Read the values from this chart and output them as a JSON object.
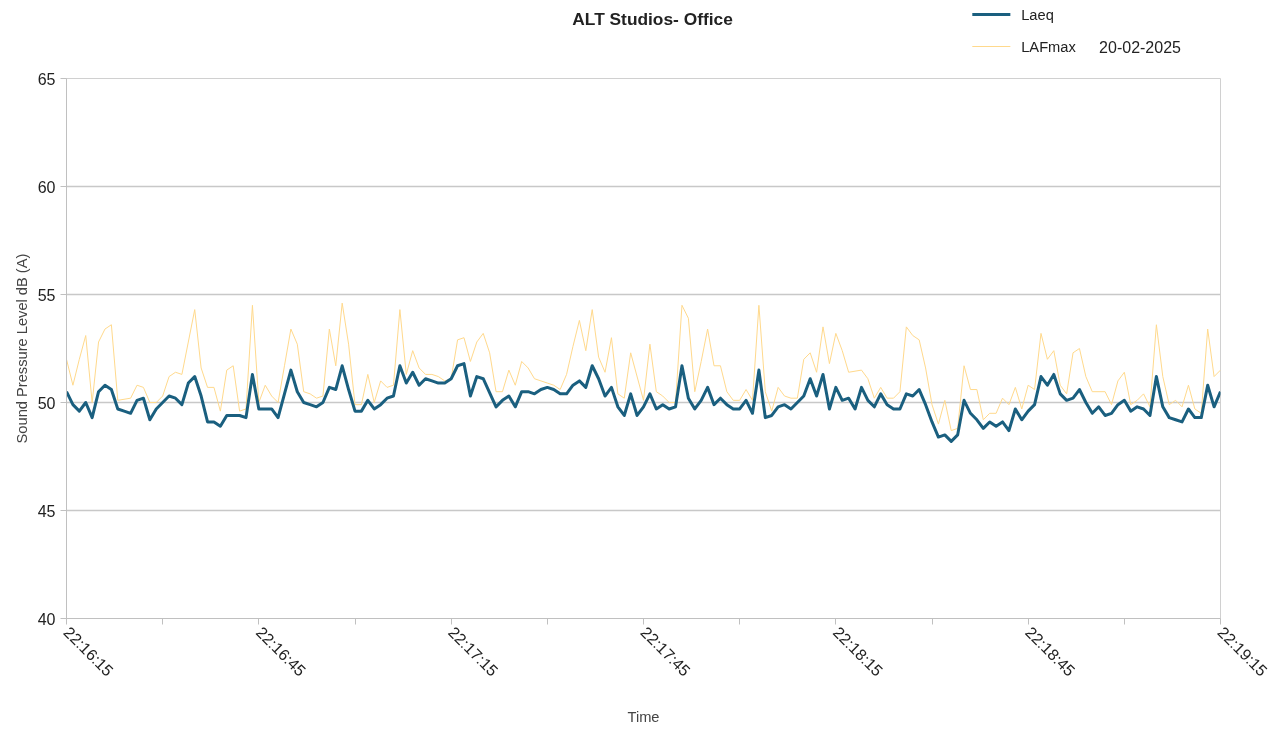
{
  "chart_data": {
    "type": "line",
    "title": "ALT Studios- Office",
    "xlabel": "Time",
    "ylabel": "Sound Pressure Level dB (A)",
    "annotations": [
      "20-02-2025"
    ],
    "xlim": [
      "2025-02-20T22:16:15",
      "2025-02-20T22:19:15"
    ],
    "xticks": [
      {
        "value": "2025-02-20T22:16:15",
        "label": "22:16:15"
      },
      {
        "value": "2025-02-20T22:16:30",
        "label": null
      },
      {
        "value": "2025-02-20T22:16:45",
        "label": "22:16:45"
      },
      {
        "value": "2025-02-20T22:17:00",
        "label": null
      },
      {
        "value": "2025-02-20T22:17:15",
        "label": "22:17:15"
      },
      {
        "value": "2025-02-20T22:17:30",
        "label": null
      },
      {
        "value": "2025-02-20T22:17:45",
        "label": "22:17:45"
      },
      {
        "value": "2025-02-20T22:18:00",
        "label": null
      },
      {
        "value": "2025-02-20T22:18:15",
        "label": "22:18:15"
      },
      {
        "value": "2025-02-20T22:18:30",
        "label": null
      },
      {
        "value": "2025-02-20T22:18:45",
        "label": "22:18:45"
      },
      {
        "value": "2025-02-20T22:19:00",
        "label": null
      },
      {
        "value": "2025-02-20T22:19:15",
        "label": "22:19:15"
      }
    ],
    "ylim": [
      40,
      65
    ],
    "yticks": [
      40,
      45,
      50,
      55,
      60,
      65
    ],
    "grid": "y",
    "legend": "top right",
    "marker": "none",
    "series": [
      {
        "name": "LAFmax",
        "color": "#ffd98c",
        "x": [
          "2025-02-20T22:16:15",
          "2025-02-20T22:16:16",
          "2025-02-20T22:16:17",
          "2025-02-20T22:16:18",
          "2025-02-20T22:16:19",
          "2025-02-20T22:16:20",
          "2025-02-20T22:16:21",
          "2025-02-20T22:16:22",
          "2025-02-20T22:16:23",
          "2025-02-20T22:16:25",
          "2025-02-20T22:16:26",
          "2025-02-20T22:16:27",
          "2025-02-20T22:16:28",
          "2025-02-20T22:16:29",
          "2025-02-20T22:16:30",
          "2025-02-20T22:16:31",
          "2025-02-20T22:16:32",
          "2025-02-20T22:16:33",
          "2025-02-20T22:16:34",
          "2025-02-20T22:16:35",
          "2025-02-20T22:16:36",
          "2025-02-20T22:16:37",
          "2025-02-20T22:16:38",
          "2025-02-20T22:16:39",
          "2025-02-20T22:16:40",
          "2025-02-20T22:16:41",
          "2025-02-20T22:16:42",
          "2025-02-20T22:16:43",
          "2025-02-20T22:16:44",
          "2025-02-20T22:16:45",
          "2025-02-20T22:16:46",
          "2025-02-20T22:16:47",
          "2025-02-20T22:16:48",
          "2025-02-20T22:16:49",
          "2025-02-20T22:16:50",
          "2025-02-20T22:16:51",
          "2025-02-20T22:16:52",
          "2025-02-20T22:16:53",
          "2025-02-20T22:16:54",
          "2025-02-20T22:16:55",
          "2025-02-20T22:16:56",
          "2025-02-20T22:16:57",
          "2025-02-20T22:16:58",
          "2025-02-20T22:16:59",
          "2025-02-20T22:17:00",
          "2025-02-20T22:17:01",
          "2025-02-20T22:17:02",
          "2025-02-20T22:17:03",
          "2025-02-20T22:17:04",
          "2025-02-20T22:17:05",
          "2025-02-20T22:17:06",
          "2025-02-20T22:17:07",
          "2025-02-20T22:17:08",
          "2025-02-20T22:17:09",
          "2025-02-20T22:17:10",
          "2025-02-20T22:17:11",
          "2025-02-20T22:17:12",
          "2025-02-20T22:17:13",
          "2025-02-20T22:17:14",
          "2025-02-20T22:17:15",
          "2025-02-20T22:17:16",
          "2025-02-20T22:17:17",
          "2025-02-20T22:17:18",
          "2025-02-20T22:17:19",
          "2025-02-20T22:17:20",
          "2025-02-20T22:17:21",
          "2025-02-20T22:17:22",
          "2025-02-20T22:17:23",
          "2025-02-20T22:17:24",
          "2025-02-20T22:17:25",
          "2025-02-20T22:17:26",
          "2025-02-20T22:17:27",
          "2025-02-20T22:17:28",
          "2025-02-20T22:17:29",
          "2025-02-20T22:17:30",
          "2025-02-20T22:17:31",
          "2025-02-20T22:17:32",
          "2025-02-20T22:17:33",
          "2025-02-20T22:17:34",
          "2025-02-20T22:17:35",
          "2025-02-20T22:17:36",
          "2025-02-20T22:17:37",
          "2025-02-20T22:17:38",
          "2025-02-20T22:17:39",
          "2025-02-20T22:17:40",
          "2025-02-20T22:17:41",
          "2025-02-20T22:17:42",
          "2025-02-20T22:17:43",
          "2025-02-20T22:17:45",
          "2025-02-20T22:17:46",
          "2025-02-20T22:17:47",
          "2025-02-20T22:17:48",
          "2025-02-20T22:17:49",
          "2025-02-20T22:17:50",
          "2025-02-20T22:17:51",
          "2025-02-20T22:17:52",
          "2025-02-20T22:17:53",
          "2025-02-20T22:17:54",
          "2025-02-20T22:17:55",
          "2025-02-20T22:17:56",
          "2025-02-20T22:17:57",
          "2025-02-20T22:17:58",
          "2025-02-20T22:17:59",
          "2025-02-20T22:18:00",
          "2025-02-20T22:18:01",
          "2025-02-20T22:18:02",
          "2025-02-20T22:18:03",
          "2025-02-20T22:18:04",
          "2025-02-20T22:18:05",
          "2025-02-20T22:18:06",
          "2025-02-20T22:18:07",
          "2025-02-20T22:18:08",
          "2025-02-20T22:18:09",
          "2025-02-20T22:18:10",
          "2025-02-20T22:18:11",
          "2025-02-20T22:18:12",
          "2025-02-20T22:18:13",
          "2025-02-20T22:18:14",
          "2025-02-20T22:18:15",
          "2025-02-20T22:18:16",
          "2025-02-20T22:18:17",
          "2025-02-20T22:18:19",
          "2025-02-20T22:18:20",
          "2025-02-20T22:18:21",
          "2025-02-20T22:18:22",
          "2025-02-20T22:18:23",
          "2025-02-20T22:18:24",
          "2025-02-20T22:18:25",
          "2025-02-20T22:18:26",
          "2025-02-20T22:18:27",
          "2025-02-20T22:18:28",
          "2025-02-20T22:18:29",
          "2025-02-20T22:18:30",
          "2025-02-20T22:18:31",
          "2025-02-20T22:18:32",
          "2025-02-20T22:18:33",
          "2025-02-20T22:18:34",
          "2025-02-20T22:18:35",
          "2025-02-20T22:18:36",
          "2025-02-20T22:18:37",
          "2025-02-20T22:18:38",
          "2025-02-20T22:18:39",
          "2025-02-20T22:18:40",
          "2025-02-20T22:18:41",
          "2025-02-20T22:18:42",
          "2025-02-20T22:18:43",
          "2025-02-20T22:18:44",
          "2025-02-20T22:18:45",
          "2025-02-20T22:18:46",
          "2025-02-20T22:18:47",
          "2025-02-20T22:18:48",
          "2025-02-20T22:18:49",
          "2025-02-20T22:18:50",
          "2025-02-20T22:18:51",
          "2025-02-20T22:18:52",
          "2025-02-20T22:18:53",
          "2025-02-20T22:18:54",
          "2025-02-20T22:18:55",
          "2025-02-20T22:18:57",
          "2025-02-20T22:18:58",
          "2025-02-20T22:18:59",
          "2025-02-20T22:19:00",
          "2025-02-20T22:19:01",
          "2025-02-20T22:19:02",
          "2025-02-20T22:19:03",
          "2025-02-20T22:19:04",
          "2025-02-20T22:19:05",
          "2025-02-20T22:19:06",
          "2025-02-20T22:19:07",
          "2025-02-20T22:19:08",
          "2025-02-20T22:19:09",
          "2025-02-20T22:19:10",
          "2025-02-20T22:19:11",
          "2025-02-20T22:19:12",
          "2025-02-20T22:19:13",
          "2025-02-20T22:19:14",
          "2025-02-20T22:19:15"
        ],
        "values": [
          52.0,
          50.8,
          52.0,
          53.1,
          50.0,
          52.8,
          53.4,
          53.6,
          50.1,
          50.2,
          50.8,
          50.7,
          50.0,
          50.0,
          50.3,
          51.2,
          51.4,
          51.3,
          52.8,
          54.3,
          51.6,
          50.7,
          50.7,
          49.6,
          51.5,
          51.7,
          49.6,
          49.7,
          54.5,
          50.0,
          50.8,
          50.3,
          50.0,
          51.7,
          53.4,
          52.7,
          50.5,
          50.4,
          50.2,
          50.3,
          53.4,
          51.7,
          54.6,
          52.7,
          49.9,
          49.9,
          51.3,
          50.0,
          51.0,
          50.7,
          50.8,
          54.3,
          51.3,
          52.4,
          51.6,
          51.3,
          51.3,
          51.2,
          51.0,
          51.1,
          52.9,
          53.0,
          51.9,
          52.8,
          53.2,
          52.3,
          50.5,
          50.5,
          51.5,
          50.8,
          51.9,
          51.6,
          51.1,
          51.0,
          50.9,
          50.8,
          50.6,
          51.3,
          52.6,
          53.8,
          52.4,
          54.3,
          52.1,
          51.4,
          53.0,
          50.4,
          50.2,
          52.3,
          50.1,
          52.7,
          50.5,
          50.3,
          50.0,
          50.0,
          54.5,
          53.9,
          50.5,
          51.9,
          53.4,
          51.7,
          51.7,
          50.5,
          50.1,
          50.1,
          50.6,
          50.1,
          54.5,
          50.5,
          49.6,
          50.7,
          50.3,
          50.2,
          50.2,
          52.0,
          52.3,
          51.4,
          53.5,
          51.8,
          53.2,
          52.4,
          51.4,
          51.5,
          51.1,
          50.2,
          50.7,
          50.2,
          50.2,
          50.5,
          53.5,
          53.1,
          52.9,
          51.6,
          49.9,
          49.0,
          50.1,
          48.7,
          48.8,
          51.7,
          50.6,
          50.6,
          49.2,
          49.5,
          49.5,
          50.2,
          49.9,
          50.7,
          49.7,
          50.8,
          50.6,
          53.2,
          52.0,
          52.4,
          50.8,
          50.4,
          52.3,
          52.5,
          51.2,
          50.5,
          50.5,
          49.9,
          51.0,
          51.4,
          49.9,
          50.1,
          50.4,
          49.8,
          53.6,
          51.2,
          49.9,
          50.1,
          49.8,
          50.8,
          49.7,
          49.5,
          53.4,
          51.2,
          51.5
        ]
      },
      {
        "name": "Laeq",
        "color": "#1a5f7f",
        "x": [
          "2025-02-20T22:16:15",
          "2025-02-20T22:16:16",
          "2025-02-20T22:16:17",
          "2025-02-20T22:16:18",
          "2025-02-20T22:16:19",
          "2025-02-20T22:16:20",
          "2025-02-20T22:16:21",
          "2025-02-20T22:16:22",
          "2025-02-20T22:16:23",
          "2025-02-20T22:16:24",
          "2025-02-20T22:16:25",
          "2025-02-20T22:16:26",
          "2025-02-20T22:16:27",
          "2025-02-20T22:16:28",
          "2025-02-20T22:16:29",
          "2025-02-20T22:16:30",
          "2025-02-20T22:16:31",
          "2025-02-20T22:16:32",
          "2025-02-20T22:16:33",
          "2025-02-20T22:16:34",
          "2025-02-20T22:16:35",
          "2025-02-20T22:16:36",
          "2025-02-20T22:16:37",
          "2025-02-20T22:16:38",
          "2025-02-20T22:16:39",
          "2025-02-20T22:16:40",
          "2025-02-20T22:16:41",
          "2025-02-20T22:16:42",
          "2025-02-20T22:16:43",
          "2025-02-20T22:16:44",
          "2025-02-20T22:16:45",
          "2025-02-20T22:16:46",
          "2025-02-20T22:16:47",
          "2025-02-20T22:16:48",
          "2025-02-20T22:16:49",
          "2025-02-20T22:16:50",
          "2025-02-20T22:16:51",
          "2025-02-20T22:16:52",
          "2025-02-20T22:16:53",
          "2025-02-20T22:16:54",
          "2025-02-20T22:16:55",
          "2025-02-20T22:16:56",
          "2025-02-20T22:16:57",
          "2025-02-20T22:16:58",
          "2025-02-20T22:16:59",
          "2025-02-20T22:17:00",
          "2025-02-20T22:17:01",
          "2025-02-20T22:17:02",
          "2025-02-20T22:17:03",
          "2025-02-20T22:17:04",
          "2025-02-20T22:17:05",
          "2025-02-20T22:17:06",
          "2025-02-20T22:17:07",
          "2025-02-20T22:17:08",
          "2025-02-20T22:17:09",
          "2025-02-20T22:17:10",
          "2025-02-20T22:17:11",
          "2025-02-20T22:17:12",
          "2025-02-20T22:17:13",
          "2025-02-20T22:17:14",
          "2025-02-20T22:17:15",
          "2025-02-20T22:17:16",
          "2025-02-20T22:17:17",
          "2025-02-20T22:17:18",
          "2025-02-20T22:17:19",
          "2025-02-20T22:17:20",
          "2025-02-20T22:17:22",
          "2025-02-20T22:17:23",
          "2025-02-20T22:17:24",
          "2025-02-20T22:17:25",
          "2025-02-20T22:17:26",
          "2025-02-20T22:17:27",
          "2025-02-20T22:17:28",
          "2025-02-20T22:17:29",
          "2025-02-20T22:17:30",
          "2025-02-20T22:17:31",
          "2025-02-20T22:17:32",
          "2025-02-20T22:17:33",
          "2025-02-20T22:17:34",
          "2025-02-20T22:17:35",
          "2025-02-20T22:17:36",
          "2025-02-20T22:17:37",
          "2025-02-20T22:17:38",
          "2025-02-20T22:17:39",
          "2025-02-20T22:17:40",
          "2025-02-20T22:17:41",
          "2025-02-20T22:17:42",
          "2025-02-20T22:17:43",
          "2025-02-20T22:17:44",
          "2025-02-20T22:17:45",
          "2025-02-20T22:17:46",
          "2025-02-20T22:17:47",
          "2025-02-20T22:17:48",
          "2025-02-20T22:17:49",
          "2025-02-20T22:17:50",
          "2025-02-20T22:17:51",
          "2025-02-20T22:17:52",
          "2025-02-20T22:17:53",
          "2025-02-20T22:17:54",
          "2025-02-20T22:17:55",
          "2025-02-20T22:17:56",
          "2025-02-20T22:17:57",
          "2025-02-20T22:17:58",
          "2025-02-20T22:17:59",
          "2025-02-20T22:18:00",
          "2025-02-20T22:18:01",
          "2025-02-20T22:18:02",
          "2025-02-20T22:18:03",
          "2025-02-20T22:18:04",
          "2025-02-20T22:18:05",
          "2025-02-20T22:18:06",
          "2025-02-20T22:18:07",
          "2025-02-20T22:18:08",
          "2025-02-20T22:18:09",
          "2025-02-20T22:18:10",
          "2025-02-20T22:18:11",
          "2025-02-20T22:18:12",
          "2025-02-20T22:18:13",
          "2025-02-20T22:18:14",
          "2025-02-20T22:18:15",
          "2025-02-20T22:18:16",
          "2025-02-20T22:18:17",
          "2025-02-20T22:18:18",
          "2025-02-20T22:18:19",
          "2025-02-20T22:18:20",
          "2025-02-20T22:18:21",
          "2025-02-20T22:18:22",
          "2025-02-20T22:18:23",
          "2025-02-20T22:18:24",
          "2025-02-20T22:18:25",
          "2025-02-20T22:18:26",
          "2025-02-20T22:18:27",
          "2025-02-20T22:18:28",
          "2025-02-20T22:18:29",
          "2025-02-20T22:18:30",
          "2025-02-20T22:18:31",
          "2025-02-20T22:18:32",
          "2025-02-20T22:18:33",
          "2025-02-20T22:18:34",
          "2025-02-20T22:18:35",
          "2025-02-20T22:18:36",
          "2025-02-20T22:18:37",
          "2025-02-20T22:18:38",
          "2025-02-20T22:18:39",
          "2025-02-20T22:18:40",
          "2025-02-20T22:18:41",
          "2025-02-20T22:18:42",
          "2025-02-20T22:18:43",
          "2025-02-20T22:18:44",
          "2025-02-20T22:18:45",
          "2025-02-20T22:18:46",
          "2025-02-20T22:18:47",
          "2025-02-20T22:18:48",
          "2025-02-20T22:18:49",
          "2025-02-20T22:18:50",
          "2025-02-20T22:18:51",
          "2025-02-20T22:18:52",
          "2025-02-20T22:18:53",
          "2025-02-20T22:18:54",
          "2025-02-20T22:18:55",
          "2025-02-20T22:18:56",
          "2025-02-20T22:18:57",
          "2025-02-20T22:18:58",
          "2025-02-20T22:18:59",
          "2025-02-20T22:19:00",
          "2025-02-20T22:19:01",
          "2025-02-20T22:19:02",
          "2025-02-20T22:19:03",
          "2025-02-20T22:19:04",
          "2025-02-20T22:19:05",
          "2025-02-20T22:19:06",
          "2025-02-20T22:19:07",
          "2025-02-20T22:19:08",
          "2025-02-20T22:19:09",
          "2025-02-20T22:19:10",
          "2025-02-20T22:19:11",
          "2025-02-20T22:19:12",
          "2025-02-20T22:19:13",
          "2025-02-20T22:19:14",
          "2025-02-20T22:19:15"
        ],
        "values": [
          50.5,
          49.9,
          49.6,
          50.0,
          49.3,
          50.5,
          50.8,
          50.6,
          49.7,
          49.6,
          49.5,
          50.1,
          50.2,
          49.2,
          49.7,
          50.0,
          50.3,
          50.2,
          49.9,
          50.9,
          51.2,
          50.3,
          49.1,
          49.1,
          48.9,
          49.4,
          49.4,
          49.4,
          49.3,
          51.3,
          49.7,
          49.7,
          49.7,
          49.3,
          50.4,
          51.5,
          50.5,
          50.0,
          49.9,
          49.8,
          50.0,
          50.7,
          50.6,
          51.7,
          50.6,
          49.6,
          49.6,
          50.1,
          49.7,
          49.9,
          50.2,
          50.3,
          51.7,
          50.9,
          51.4,
          50.8,
          51.1,
          51.0,
          50.9,
          50.9,
          51.1,
          51.7,
          51.8,
          50.3,
          51.2,
          51.1,
          49.8,
          50.1,
          50.3,
          49.8,
          50.5,
          50.5,
          50.4,
          50.6,
          50.7,
          50.6,
          50.4,
          50.4,
          50.8,
          51.0,
          50.7,
          51.7,
          51.1,
          50.3,
          50.7,
          49.8,
          49.4,
          50.4,
          49.4,
          49.8,
          50.4,
          49.7,
          49.9,
          49.7,
          49.8,
          51.7,
          50.2,
          49.7,
          50.1,
          50.7,
          49.9,
          50.2,
          49.9,
          49.7,
          49.7,
          50.1,
          49.5,
          51.5,
          49.3,
          49.4,
          49.8,
          49.9,
          49.7,
          50.0,
          50.3,
          51.1,
          50.3,
          51.3,
          49.7,
          50.7,
          50.1,
          50.2,
          49.7,
          50.7,
          50.1,
          49.8,
          50.4,
          49.9,
          49.7,
          49.7,
          50.4,
          50.3,
          50.6,
          49.9,
          49.1,
          48.4,
          48.5,
          48.2,
          48.5,
          50.1,
          49.5,
          49.2,
          48.8,
          49.1,
          48.9,
          49.1,
          48.7,
          49.7,
          49.2,
          49.6,
          49.9,
          51.2,
          50.8,
          51.3,
          50.4,
          50.1,
          50.2,
          50.6,
          50.0,
          49.5,
          49.8,
          49.4,
          49.5,
          49.9,
          50.1,
          49.6,
          49.8,
          49.7,
          49.4,
          51.2,
          49.8,
          49.3,
          49.2,
          49.1,
          49.7,
          49.3,
          49.3,
          50.8,
          49.8,
          50.5
        ]
      }
    ]
  }
}
